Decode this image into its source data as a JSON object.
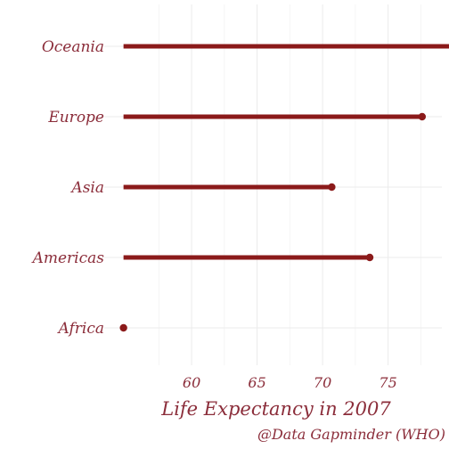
{
  "chart_data": {
    "type": "lollipop",
    "orientation": "horizontal",
    "categories": [
      "Africa",
      "Americas",
      "Asia",
      "Europe",
      "Oceania"
    ],
    "values": [
      54.8,
      73.6,
      70.7,
      77.6,
      80.7
    ],
    "baseline": 54.8,
    "xlabel": "Life Expectancy in 2007",
    "caption": "@Data Gapminder (WHO)",
    "xticks": [
      60,
      65,
      70,
      75
    ],
    "xlim": [
      53.6,
      78.7
    ],
    "grid": true,
    "legend": "none",
    "colors": {
      "stem": "#8b1a1a",
      "point": "#8b1a1a",
      "text": "#8b2d3a",
      "grid": "#ebebeb"
    }
  }
}
